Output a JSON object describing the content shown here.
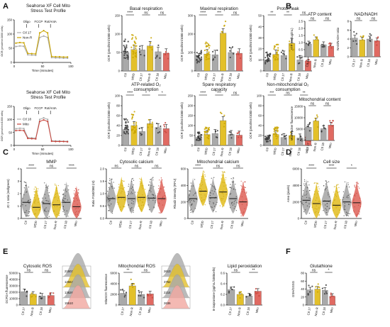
{
  "colors": {
    "ctl": "#a9a9a9",
    "mdd": "#e3c02a",
    "mito": "#e06a62",
    "gold": "#c9a400",
    "red": "#c8453c",
    "dark": "#3a3a3a",
    "pink": "#f2a8a1"
  },
  "ylabels": {
    "ocr": "OCR (pmol/min/1000 cells)",
    "atp": "ATP (nM/ug/mL)",
    "nad": "NAD/NADH ratio",
    "mitotracker": "MitoTracker fluorescence",
    "jc1": "JC-1 ratio (red/green)",
    "fura": "Ratio F340/380 (nt)",
    "rhod": "Rhod2 intensity (RFU)",
    "area": "Area (pixels)",
    "dcfda": "DCFDA fluorescence",
    "mitosox": "MitoSOX fluorescence",
    "lipid": "8-isoprostane (pg/mL/1000cells)",
    "gsh": "GSH/GSSG"
  },
  "xlabel_time": "Time (minutes)",
  "sets": {
    "cm": [
      "Ctl",
      "MDD",
      "Ctl 17",
      "Non-R",
      "Ctl 18",
      "Mito"
    ],
    "pair": [
      "Ctl 17",
      "Non-R",
      "Ctl 18",
      "Mito"
    ]
  },
  "chart_data": [
    {
      "id": "A1",
      "panel": "A",
      "type": "line",
      "title": "Seahorse XF Cell Mito Stress Test  Profile",
      "xlabel": "Time (minutes)",
      "ylabel": "OCR (pmol/min/1000 cells)",
      "xlim": [
        0,
        100
      ],
      "ylim": [
        0,
        150
      ],
      "xticks": [
        "0",
        "50",
        "100"
      ],
      "yticks": [
        "0",
        "50",
        "100",
        "150"
      ],
      "annotations": [
        "Oligo",
        "FCCP",
        "Rot/AntA"
      ],
      "x": [
        3,
        10,
        17,
        24,
        31,
        38,
        45,
        52,
        59,
        66,
        73,
        80,
        87,
        94
      ],
      "series": [
        {
          "name": "Ctl 17",
          "color": "#a9a9a9",
          "values": [
            56,
            58,
            57,
            27,
            26,
            25,
            88,
            93,
            88,
            17,
            16,
            16,
            15,
            15
          ]
        },
        {
          "name": "Non-R",
          "color": "#c9a400",
          "values": [
            68,
            70,
            69,
            32,
            31,
            30,
            104,
            112,
            104,
            21,
            20,
            20,
            19,
            19
          ]
        }
      ]
    },
    {
      "id": "A2",
      "panel": "A",
      "type": "line",
      "title": "Seahorse XF Cell Mito Stress Test  Profile",
      "xlabel": "Time (minutes)",
      "ylabel": "OCR (pmol/min/1000 cells)",
      "xlim": [
        0,
        100
      ],
      "ylim": [
        0,
        150
      ],
      "xticks": [
        "0",
        "50",
        "100"
      ],
      "yticks": [
        "0",
        "50",
        "100",
        "150"
      ],
      "annotations": [
        "Oligo",
        "FCCP",
        "Rot/AntA"
      ],
      "x": [
        3,
        10,
        17,
        24,
        31,
        38,
        45,
        52,
        59,
        66,
        73,
        80,
        87,
        94
      ],
      "series": [
        {
          "name": "Ctl 18",
          "color": "#a9a9a9",
          "values": [
            64,
            66,
            65,
            30,
            29,
            28,
            100,
            106,
            100,
            18,
            17,
            17,
            16,
            16
          ]
        },
        {
          "name": "Mito",
          "color": "#c8453c",
          "values": [
            57,
            58,
            57,
            27,
            26,
            25,
            92,
            98,
            92,
            16,
            15,
            15,
            15,
            14
          ]
        }
      ]
    },
    {
      "id": "basal",
      "panel": "A",
      "type": "bar",
      "title": "Basal respiration",
      "ylabel": "OCR (pmol/min/1000 cells)",
      "ylim": [
        0,
        150
      ],
      "yticks": [
        "0",
        "50",
        "100",
        "150"
      ],
      "categories": [
        "Ctl",
        "MDD",
        "Ctl 17",
        "Non-R",
        "Ctl 18",
        "Mito"
      ],
      "values": [
        50,
        58,
        57,
        68,
        52,
        48
      ],
      "sig": [
        "****",
        "ns",
        "ns"
      ]
    },
    {
      "id": "maximal",
      "panel": "A",
      "type": "bar",
      "title": "Maximal respiration",
      "ylabel": "OCR (pmol/min/1000 cells)",
      "ylim": [
        0,
        300
      ],
      "yticks": [
        "0",
        "100",
        "200",
        "300"
      ],
      "categories": [
        "Ctl",
        "MDD",
        "Ctl 17",
        "Non-R",
        "Ctl 18",
        "Mito"
      ],
      "values": [
        70,
        92,
        88,
        205,
        100,
        96
      ],
      "sig": [
        "****",
        "***",
        "ns"
      ]
    },
    {
      "id": "proton",
      "panel": "A",
      "type": "bar",
      "title": "Proton leak",
      "ylabel": "OCR (pmol/min/1000 cells)",
      "ylim": [
        0,
        50
      ],
      "yticks": [
        "0",
        "10",
        "20",
        "30",
        "40",
        "50"
      ],
      "categories": [
        "Ctl",
        "MDD",
        "Ctl 17",
        "Non-R",
        "Ctl 18",
        "Mito"
      ],
      "values": [
        10,
        15,
        14,
        25,
        10,
        9
      ],
      "sig": [
        "**",
        "**",
        "ns"
      ]
    },
    {
      "id": "atplinked",
      "panel": "A",
      "type": "bar",
      "title": "ATP-related O₂ consumption",
      "ylabel": "OCR (pmol/min/1000 cells)",
      "ylim": [
        0,
        100
      ],
      "yticks": [
        "0",
        "20",
        "40",
        "60",
        "80",
        "100"
      ],
      "categories": [
        "Ctl",
        "MDD",
        "Ctl 17",
        "Non-R",
        "Ctl 18",
        "Mito"
      ],
      "values": [
        32,
        40,
        28,
        44,
        36,
        34
      ],
      "sig": [
        "****",
        "*",
        "*"
      ]
    },
    {
      "id": "spare",
      "panel": "A",
      "type": "bar",
      "title": "Spare respiratory capacity",
      "ylabel": "OCR (pmol/min/1000 cells)",
      "ylim": [
        0,
        250
      ],
      "yticks": [
        "0",
        "50",
        "100",
        "150",
        "200",
        "250"
      ],
      "categories": [
        "Ctl",
        "MDD",
        "Ctl 17",
        "Non-R",
        "Ctl 18",
        "Mito"
      ],
      "values": [
        40,
        55,
        60,
        125,
        55,
        52
      ],
      "sig": [
        "****",
        "***",
        "ns"
      ]
    },
    {
      "id": "nonmito",
      "panel": "A",
      "type": "bar",
      "title": "Non-mitochondrial O₂ consumption",
      "ylabel": "OCR (pmol/min/1000 cells)",
      "ylim": [
        0,
        100
      ],
      "yticks": [
        "0",
        "20",
        "40",
        "60",
        "80",
        "100"
      ],
      "categories": [
        "Ctl",
        "MDD",
        "Ctl 17",
        "Non-R",
        "Ctl 18",
        "Mito"
      ],
      "values": [
        12,
        22,
        16,
        20,
        15,
        13
      ],
      "sig": [
        "***",
        "ns",
        "**"
      ]
    },
    {
      "id": "atpcontent",
      "panel": "B",
      "type": "bar",
      "title": "ATP content",
      "ylabel": "ATP (nM/ug/mL)",
      "ylim": [
        0,
        2.5
      ],
      "yticks": [
        "0.0",
        "0.5",
        "1.0",
        "1.5",
        "2.0",
        "2.5"
      ],
      "categories": [
        "Ctl 17",
        "Non-R",
        "Ctl 18",
        "Mito"
      ],
      "values": [
        0.9,
        1.2,
        0.85,
        0.75
      ],
      "sig": [
        "ns",
        "ns"
      ]
    },
    {
      "id": "nadnadh",
      "panel": "B",
      "type": "bar",
      "title": "NAD/NADH",
      "ylabel": "NAD/NADH ratio",
      "ylim": [
        0,
        8
      ],
      "yticks": [
        "0",
        "2",
        "4",
        "6",
        "8"
      ],
      "categories": [
        "Ctl 17",
        "Non-R",
        "Ctl 18",
        "Mito"
      ],
      "values": [
        4.2,
        3.8,
        4.0,
        3.6
      ],
      "sig": [
        "ns",
        "ns"
      ]
    },
    {
      "id": "mitocontent",
      "panel": "B",
      "type": "bar",
      "title": "Mitochondrial content",
      "ylabel": "MitoTracker fluorescence",
      "ylim": [
        0,
        15000
      ],
      "yticks": [
        "0",
        "5000",
        "10000",
        "15000"
      ],
      "categories": [
        "Ctl 17",
        "Non-R",
        "Ctl 18",
        "Mito"
      ],
      "values": [
        5800,
        8600,
        5200,
        6800
      ],
      "sig": [
        "ns",
        "ns"
      ]
    },
    {
      "id": "mmp",
      "panel": "C",
      "type": "violin",
      "title": "MMP",
      "ylabel": "JC-1 ratio (red/green)",
      "ylim": [
        0,
        4
      ],
      "yticks": [
        "0",
        "1",
        "2",
        "3",
        "4"
      ],
      "categories": [
        "Ctl",
        "MDD",
        "Ctl 17",
        "Non-R",
        "Ctl 18",
        "Mito"
      ],
      "values": [
        1.3,
        0.9,
        1.2,
        1.1,
        1.3,
        0.95
      ],
      "sig": [
        "****",
        "ns",
        "****"
      ]
    },
    {
      "id": "cytocalcium",
      "panel": "C",
      "type": "violin",
      "title": "Cytosolic calcium",
      "ylabel": "Ratio F340/380 (nt)",
      "ylim": [
        0,
        2
      ],
      "yticks": [
        "0.0",
        "0.5",
        "1.0",
        "1.5",
        "2.0"
      ],
      "categories": [
        "Ctl",
        "MDD",
        "Ctl 17",
        "Non-R",
        "Ctl 18",
        "Mito"
      ],
      "values": [
        0.8,
        0.85,
        0.8,
        0.85,
        0.82,
        0.8
      ],
      "sig": [
        "ns",
        "ns",
        "ns"
      ]
    },
    {
      "id": "mitocalcium",
      "panel": "C",
      "type": "violin",
      "title": "Mitochondrial calcium",
      "ylabel": "Rhod2 intensity (RFU)",
      "ylim": [
        0,
        600
      ],
      "yticks": [
        "0",
        "200",
        "400",
        "600"
      ],
      "categories": [
        "Ctl",
        "MDD",
        "Ctl 17",
        "Non-R",
        "Ctl 18",
        "Mito"
      ],
      "values": [
        240,
        330,
        250,
        320,
        240,
        200
      ],
      "sig": [
        "****",
        "ns",
        "ns"
      ]
    },
    {
      "id": "cellsize",
      "panel": "D",
      "type": "violin",
      "title": "Cell size",
      "ylabel": "Area (pixels)",
      "ylim": [
        0,
        6000
      ],
      "yticks": [
        "0",
        "2000",
        "4000",
        "6000"
      ],
      "categories": [
        "Ctl",
        "MDD",
        "Ctl 17",
        "Non-R",
        "Ctl 18",
        "Mito"
      ],
      "values": [
        2200,
        1800,
        2100,
        1600,
        2000,
        1900
      ],
      "sig": [
        "****",
        "****",
        "*"
      ]
    },
    {
      "id": "cytoros",
      "panel": "E",
      "type": "bar",
      "title": "Cytosolic ROS",
      "ylabel": "DCFDA fluorescence",
      "ylim": [
        0,
        50000
      ],
      "yticks": [
        "0",
        "10000",
        "20000",
        "30000",
        "40000",
        "50000"
      ],
      "categories": [
        "Ctl 17",
        "Non-R",
        "Ctl 18",
        "Mito"
      ],
      "values": [
        21000,
        17000,
        14000,
        15000
      ],
      "sig": [
        "ns",
        "ns"
      ]
    },
    {
      "id": "histo1",
      "panel": "E",
      "type": "histogram",
      "labels": [
        "21502",
        "12662",
        "13626",
        "15510"
      ]
    },
    {
      "id": "mitoros",
      "panel": "E",
      "type": "bar",
      "title": "Mitochondrial ROS",
      "ylabel": "MitoSOX fluorescence",
      "ylim": [
        0,
        6000
      ],
      "yticks": [
        "0",
        "2000",
        "4000",
        "6000"
      ],
      "categories": [
        "Ctl 17",
        "Non-R",
        "Ctl 18",
        "Mito"
      ],
      "values": [
        2200,
        3600,
        2000,
        2100
      ],
      "sig": [
        "**",
        "ns"
      ]
    },
    {
      "id": "histo2",
      "panel": "E",
      "type": "histogram",
      "labels": [
        "2613",
        "3762",
        "2214",
        "2636"
      ]
    },
    {
      "id": "lipid",
      "panel": "E",
      "type": "bar",
      "title": "Lipid peroxidation",
      "ylabel": "8-isoprostane (pg/mL/1000cells)",
      "ylim": [
        0,
        0.6
      ],
      "yticks": [
        "0.0",
        "0.2",
        "0.4",
        "0.6"
      ],
      "categories": [
        "Ctl 17",
        "Non-R",
        "Ctl 18",
        "Mito"
      ],
      "values": [
        0.29,
        0.2,
        0.17,
        0.26
      ],
      "sig": [
        "ns",
        "**"
      ]
    },
    {
      "id": "gsh",
      "panel": "F",
      "type": "bar",
      "title": "Glutathione",
      "ylabel": "GSH/GSSG",
      "ylim": [
        0,
        80
      ],
      "yticks": [
        "0",
        "20",
        "40",
        "60",
        "80"
      ],
      "categories": [
        "Ctl 17",
        "Non-R",
        "Ctl 18",
        "Mito"
      ],
      "values": [
        38,
        40,
        37,
        22
      ],
      "sig": [
        "ns",
        "*"
      ]
    }
  ],
  "panels": [
    "A",
    "B",
    "C",
    "D",
    "E",
    "F"
  ]
}
